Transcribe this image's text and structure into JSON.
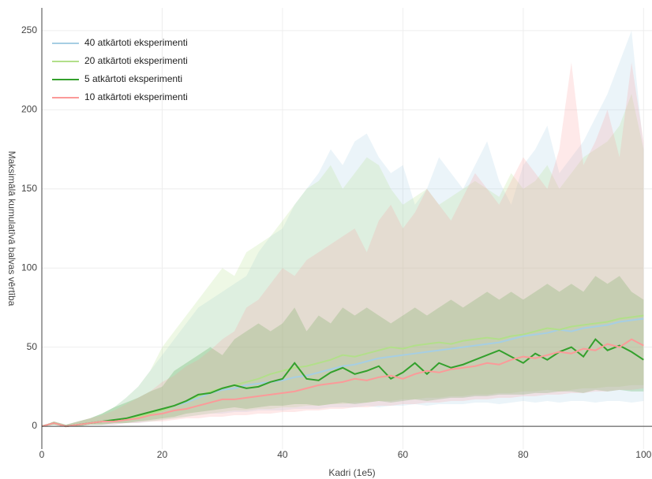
{
  "chart_data": {
    "type": "line-band",
    "x_label": "Kadri (1e5)",
    "y_label": "Maksimālā kumulatīvā balvas vērtība",
    "xlim": [
      0,
      101.4
    ],
    "ylim": [
      -14.4,
      264.4
    ],
    "xticks": [
      0,
      20,
      40,
      60,
      80,
      100
    ],
    "yticks": [
      0,
      50,
      100,
      150,
      200,
      250
    ],
    "grid": true,
    "legend": "top-left",
    "x": [
      0,
      2,
      4,
      6,
      8,
      10,
      12,
      14,
      16,
      18,
      20,
      22,
      24,
      26,
      28,
      30,
      32,
      34,
      36,
      38,
      40,
      42,
      44,
      46,
      48,
      50,
      52,
      54,
      56,
      58,
      60,
      62,
      64,
      66,
      68,
      70,
      72,
      74,
      76,
      78,
      80,
      82,
      84,
      86,
      88,
      90,
      92,
      94,
      96,
      98,
      100
    ],
    "series": [
      {
        "name": "40 atkārtoti eksperimenti",
        "color": "#a6cee3",
        "values": [
          0,
          2,
          0,
          1,
          2,
          3,
          3,
          4,
          6,
          8,
          10,
          13,
          15,
          18,
          21,
          23,
          24,
          26,
          27,
          28,
          29,
          31,
          32,
          34,
          36,
          38,
          39,
          41,
          43,
          44,
          45,
          46,
          47,
          48,
          49,
          50,
          51,
          52,
          53,
          55,
          57,
          58,
          59,
          61,
          60,
          62,
          63,
          64,
          66,
          67,
          68
        ],
        "lower": [
          0,
          1,
          0,
          0,
          1,
          1,
          1,
          2,
          2,
          3,
          4,
          5,
          6,
          7,
          8,
          8,
          9,
          9,
          10,
          10,
          10,
          11,
          11,
          11,
          12,
          12,
          12,
          13,
          12,
          13,
          13,
          14,
          13,
          14,
          14,
          14,
          15,
          15,
          14,
          15,
          16,
          15,
          16,
          15,
          16,
          16,
          15,
          16,
          16,
          15,
          16
        ],
        "upper": [
          0,
          3,
          1,
          3,
          5,
          8,
          12,
          18,
          25,
          35,
          45,
          55,
          65,
          75,
          80,
          85,
          90,
          95,
          110,
          120,
          125,
          140,
          150,
          160,
          175,
          165,
          180,
          185,
          170,
          160,
          165,
          140,
          150,
          170,
          160,
          150,
          165,
          180,
          155,
          140,
          165,
          175,
          190,
          160,
          170,
          180,
          195,
          210,
          230,
          250,
          175
        ]
      },
      {
        "name": "20 atkārtoti eksperimenti",
        "color": "#b2df8a",
        "values": [
          0,
          2,
          0,
          1,
          2,
          3,
          3,
          4,
          6,
          8,
          10,
          13,
          16,
          19,
          22,
          24,
          26,
          28,
          30,
          33,
          35,
          37,
          38,
          40,
          42,
          45,
          44,
          46,
          48,
          50,
          49,
          51,
          52,
          53,
          52,
          54,
          55,
          56,
          55,
          57,
          58,
          60,
          62,
          61,
          63,
          64,
          65,
          66,
          68,
          69,
          70
        ],
        "lower": [
          0,
          1,
          0,
          0,
          1,
          1,
          2,
          2,
          3,
          3,
          4,
          5,
          6,
          7,
          8,
          9,
          10,
          10,
          11,
          11,
          12,
          12,
          13,
          13,
          14,
          14,
          15,
          15,
          16,
          16,
          17,
          17,
          18,
          18,
          19,
          19,
          20,
          20,
          21,
          21,
          22,
          22,
          23,
          22,
          23,
          24,
          24,
          25,
          25,
          26,
          26
        ],
        "upper": [
          0,
          3,
          1,
          3,
          5,
          8,
          12,
          18,
          25,
          35,
          50,
          60,
          70,
          80,
          90,
          100,
          95,
          110,
          115,
          120,
          130,
          140,
          150,
          155,
          165,
          150,
          160,
          170,
          165,
          150,
          140,
          145,
          150,
          140,
          145,
          150,
          155,
          150,
          145,
          160,
          150,
          155,
          165,
          150,
          160,
          170,
          175,
          180,
          190,
          210,
          175
        ]
      },
      {
        "name": "5 atkārtoti eksperimenti",
        "color": "#33a02c",
        "values": [
          0,
          2,
          0,
          1,
          2,
          3,
          4,
          5,
          7,
          9,
          11,
          13,
          16,
          20,
          21,
          24,
          26,
          24,
          25,
          28,
          30,
          40,
          30,
          29,
          34,
          37,
          33,
          35,
          38,
          30,
          34,
          40,
          33,
          40,
          37,
          39,
          42,
          45,
          48,
          44,
          40,
          46,
          42,
          47,
          50,
          44,
          55,
          48,
          51,
          47,
          42
        ],
        "lower": [
          0,
          1,
          0,
          0,
          1,
          1,
          2,
          2,
          3,
          4,
          5,
          6,
          8,
          9,
          10,
          11,
          12,
          11,
          12,
          13,
          13,
          14,
          14,
          13,
          14,
          15,
          14,
          15,
          16,
          15,
          16,
          17,
          16,
          17,
          18,
          18,
          19,
          19,
          20,
          20,
          20,
          21,
          21,
          22,
          22,
          21,
          23,
          22,
          23,
          22,
          22
        ],
        "upper": [
          0,
          3,
          1,
          3,
          5,
          8,
          12,
          15,
          18,
          22,
          25,
          35,
          40,
          45,
          50,
          45,
          55,
          60,
          65,
          60,
          65,
          75,
          60,
          70,
          65,
          75,
          70,
          75,
          70,
          65,
          70,
          75,
          70,
          75,
          80,
          75,
          80,
          85,
          80,
          85,
          80,
          85,
          90,
          85,
          90,
          85,
          95,
          90,
          95,
          85,
          80
        ]
      },
      {
        "name": "10 atkārtoti eksperimenti",
        "color": "#fb9a99",
        "values": [
          0,
          2,
          0,
          1,
          2,
          3,
          3,
          4,
          5,
          7,
          8,
          10,
          11,
          13,
          15,
          17,
          17,
          18,
          19,
          20,
          21,
          22,
          24,
          26,
          27,
          28,
          30,
          29,
          31,
          32,
          30,
          33,
          35,
          34,
          36,
          37,
          38,
          40,
          39,
          42,
          44,
          43,
          45,
          47,
          46,
          49,
          48,
          52,
          50,
          55,
          51
        ],
        "lower": [
          0,
          1,
          0,
          0,
          1,
          1,
          1,
          2,
          2,
          3,
          3,
          4,
          5,
          5,
          6,
          6,
          7,
          7,
          8,
          8,
          9,
          9,
          10,
          10,
          11,
          11,
          12,
          12,
          13,
          13,
          14,
          14,
          15,
          15,
          16,
          16,
          17,
          17,
          18,
          18,
          19,
          19,
          20,
          20,
          21,
          21,
          22,
          22,
          23,
          23,
          24
        ],
        "upper": [
          0,
          3,
          1,
          3,
          5,
          7,
          10,
          14,
          18,
          22,
          28,
          32,
          38,
          42,
          48,
          55,
          60,
          75,
          80,
          90,
          100,
          95,
          105,
          110,
          115,
          120,
          125,
          110,
          130,
          140,
          125,
          135,
          150,
          140,
          130,
          145,
          160,
          150,
          140,
          155,
          170,
          160,
          150,
          175,
          230,
          165,
          180,
          200,
          170,
          230,
          180
        ]
      }
    ]
  }
}
